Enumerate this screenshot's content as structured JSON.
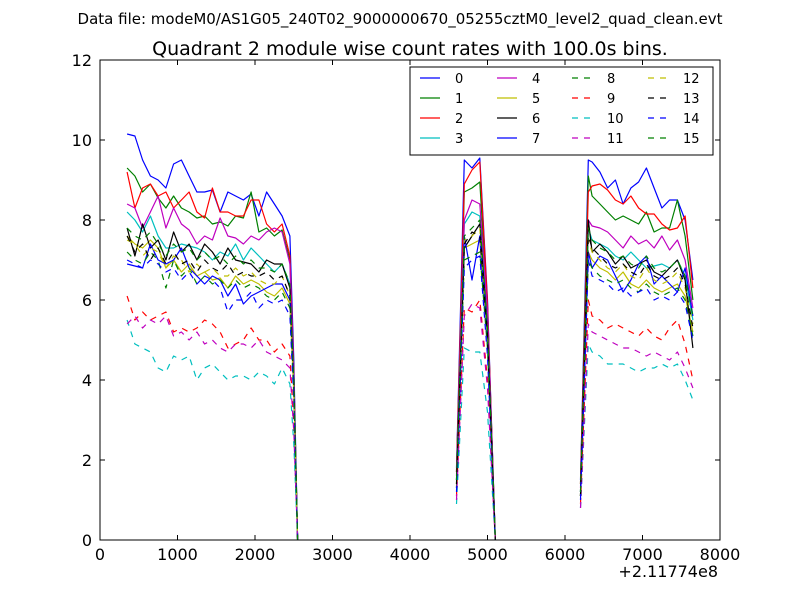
{
  "chart_data": {
    "type": "line",
    "suptitle": "Data file: modeM0/AS1G05_240T02_9000000670_05255cztM0_level2_quad_clean.evt",
    "title": "Quadrant 2 module wise count rates with 100.0s bins.",
    "xlabel": "",
    "ylabel": "",
    "x_offset_label": "+2.11774e8",
    "xlim": [
      0,
      8000
    ],
    "ylim": [
      0,
      12
    ],
    "xticks": [
      0,
      1000,
      2000,
      3000,
      4000,
      5000,
      6000,
      7000,
      8000
    ],
    "yticks": [
      0,
      2,
      4,
      6,
      8,
      10,
      12
    ],
    "x_tick_labels": [
      "0",
      "1000",
      "2000",
      "3000",
      "4000",
      "5000",
      "6000",
      "7000",
      "8000"
    ],
    "y_tick_labels": [
      "0",
      "2",
      "4",
      "6",
      "8",
      "10",
      "12"
    ],
    "grid": false,
    "legend_position": "top-right",
    "legend_columns": 4,
    "x_segments": [
      [
        350,
        450,
        550,
        650,
        750,
        850,
        950,
        1050,
        1150,
        1250,
        1350,
        1450,
        1550,
        1650,
        1750,
        1850,
        1950,
        2050,
        2150,
        2250,
        2350,
        2450,
        2500,
        2550
      ],
      [
        4600,
        4700,
        4800,
        4900,
        5000,
        5100
      ],
      [
        6200,
        6300,
        6350,
        6450,
        6550,
        6650,
        6750,
        6850,
        6950,
        7050,
        7150,
        7250,
        7350,
        7450,
        7550,
        7650
      ]
    ],
    "series": [
      {
        "name": "0",
        "color": "#0000ff",
        "dash": "solid",
        "values": [
          [
            10.15,
            10.1,
            9.5,
            9.1,
            9.0,
            8.8,
            9.4,
            9.5,
            9.1,
            8.7,
            8.7,
            8.75,
            8.2,
            8.7,
            8.6,
            8.5,
            8.65,
            8.1,
            8.7,
            8.4,
            8.1,
            7.6,
            4.5,
            0
          ],
          [
            1.8,
            9.5,
            9.3,
            9.55,
            6.0,
            0
          ],
          [
            1.5,
            9.5,
            9.45,
            9.2,
            8.8,
            9.0,
            8.4,
            8.8,
            8.95,
            9.3,
            8.8,
            8.3,
            8.5,
            8.5,
            8.0,
            6.5
          ]
        ]
      },
      {
        "name": "1",
        "color": "#008000",
        "dash": "solid",
        "values": [
          [
            9.3,
            9.1,
            8.7,
            8.9,
            8.55,
            8.3,
            8.6,
            8.3,
            8.2,
            8.05,
            8.1,
            7.9,
            7.95,
            7.85,
            8.1,
            8.05,
            8.7,
            7.7,
            7.8,
            7.6,
            7.75,
            7.0,
            4.2,
            0
          ],
          [
            1.7,
            8.7,
            8.8,
            8.95,
            5.8,
            0
          ],
          [
            1.4,
            9.1,
            8.6,
            8.4,
            8.2,
            8.0,
            8.1,
            8.0,
            7.9,
            8.2,
            7.7,
            7.8,
            7.8,
            8.5,
            7.6,
            6.0
          ]
        ]
      },
      {
        "name": "2",
        "color": "#ff0000",
        "dash": "solid",
        "values": [
          [
            9.2,
            8.3,
            8.8,
            8.9,
            8.6,
            8.7,
            8.3,
            8.5,
            8.7,
            8.2,
            8.05,
            8.8,
            8.2,
            8.2,
            8.1,
            8.1,
            8.5,
            8.5,
            7.9,
            7.7,
            7.9,
            7.1,
            4.2,
            0
          ],
          [
            1.7,
            8.9,
            9.25,
            9.45,
            5.9,
            0
          ],
          [
            1.4,
            8.7,
            8.85,
            8.9,
            8.75,
            8.5,
            8.4,
            8.6,
            8.3,
            8.15,
            8.15,
            7.9,
            7.75,
            7.8,
            8.1,
            6.3
          ]
        ]
      },
      {
        "name": "3",
        "color": "#00bfbf",
        "dash": "solid",
        "values": [
          [
            8.2,
            8.0,
            7.7,
            8.1,
            7.6,
            7.3,
            7.3,
            7.4,
            7.35,
            7.3,
            7.2,
            7.0,
            7.2,
            7.1,
            7.4,
            7.0,
            7.3,
            7.1,
            6.9,
            6.7,
            6.9,
            6.4,
            4.0,
            0
          ],
          [
            1.5,
            7.9,
            8.2,
            8.1,
            5.5,
            0
          ],
          [
            1.2,
            7.8,
            7.5,
            7.4,
            7.3,
            7.1,
            7.0,
            7.2,
            7.0,
            6.8,
            6.85,
            6.9,
            6.8,
            7.0,
            6.6,
            5.5
          ]
        ]
      },
      {
        "name": "4",
        "color": "#bf00bf",
        "dash": "solid",
        "values": [
          [
            8.4,
            8.3,
            7.8,
            8.2,
            8.6,
            7.8,
            8.3,
            7.9,
            7.75,
            7.4,
            7.6,
            7.5,
            8.05,
            7.6,
            7.55,
            7.4,
            7.6,
            7.5,
            7.7,
            7.8,
            7.7,
            6.9,
            4.1,
            0
          ],
          [
            1.6,
            8.0,
            8.5,
            8.4,
            5.7,
            0
          ],
          [
            1.3,
            8.0,
            7.85,
            7.8,
            7.7,
            7.5,
            7.3,
            7.6,
            7.4,
            7.5,
            7.3,
            7.6,
            7.25,
            7.5,
            7.0,
            5.8
          ]
        ]
      },
      {
        "name": "5",
        "color": "#bfbf00",
        "dash": "solid",
        "values": [
          [
            7.6,
            7.4,
            7.3,
            7.5,
            7.3,
            6.8,
            7.0,
            6.7,
            6.9,
            6.6,
            6.7,
            6.5,
            6.55,
            6.3,
            6.6,
            6.4,
            6.5,
            6.4,
            6.2,
            6.1,
            6.3,
            5.9,
            3.7,
            0
          ],
          [
            1.4,
            7.3,
            7.4,
            7.5,
            5.0,
            0
          ],
          [
            1.1,
            7.2,
            7.0,
            6.8,
            6.7,
            6.5,
            6.7,
            6.4,
            6.3,
            6.5,
            6.3,
            6.2,
            6.3,
            6.4,
            6.1,
            5.2
          ]
        ]
      },
      {
        "name": "6",
        "color": "#000000",
        "dash": "solid",
        "values": [
          [
            7.8,
            7.1,
            7.9,
            7.3,
            7.5,
            7.0,
            7.7,
            7.2,
            7.4,
            7.0,
            7.4,
            7.2,
            6.9,
            7.3,
            7.0,
            6.95,
            6.9,
            6.7,
            7.0,
            6.9,
            6.9,
            6.3,
            3.9,
            0
          ],
          [
            1.5,
            7.3,
            7.6,
            7.9,
            5.2,
            0
          ],
          [
            1.2,
            8.0,
            7.2,
            7.4,
            7.2,
            6.9,
            7.1,
            6.8,
            6.9,
            7.0,
            6.7,
            6.6,
            6.8,
            7.0,
            6.5,
            4.8
          ]
        ]
      },
      {
        "name": "7",
        "color": "#0000ff",
        "dash": "solid",
        "values": [
          [
            6.9,
            6.85,
            6.8,
            7.4,
            7.0,
            6.9,
            7.0,
            7.3,
            6.8,
            6.6,
            6.4,
            6.6,
            6.5,
            6.1,
            6.4,
            5.9,
            6.1,
            6.2,
            6.3,
            6.4,
            6.4,
            6.0,
            3.8,
            0
          ],
          [
            1.3,
            7.6,
            6.5,
            7.6,
            5.0,
            0
          ],
          [
            1.1,
            7.2,
            6.8,
            7.1,
            7.0,
            6.6,
            6.2,
            6.5,
            6.9,
            7.1,
            6.4,
            6.6,
            6.4,
            6.2,
            6.8,
            5.6
          ]
        ]
      },
      {
        "name": "8",
        "color": "#008000",
        "dash": "dashed",
        "values": [
          [
            7.2,
            7.0,
            6.9,
            7.2,
            7.0,
            6.3,
            7.0,
            6.6,
            6.8,
            6.4,
            6.6,
            6.4,
            6.5,
            6.3,
            6.5,
            6.3,
            6.4,
            6.3,
            6.1,
            6.0,
            6.2,
            5.8,
            3.6,
            0
          ],
          [
            1.3,
            7.0,
            7.1,
            7.2,
            4.8,
            0
          ],
          [
            1.1,
            7.0,
            6.8,
            6.6,
            6.5,
            6.4,
            6.5,
            6.3,
            6.2,
            6.4,
            6.2,
            6.1,
            6.2,
            6.3,
            6.0,
            5.1
          ]
        ]
      },
      {
        "name": "9",
        "color": "#ff0000",
        "dash": "dashed",
        "values": [
          [
            6.1,
            5.5,
            5.7,
            5.5,
            5.6,
            5.7,
            5.2,
            5.3,
            5.2,
            5.3,
            5.5,
            5.4,
            5.2,
            4.8,
            4.9,
            5.0,
            5.3,
            5.0,
            5.0,
            4.7,
            4.9,
            4.6,
            2.9,
            0
          ],
          [
            1.1,
            5.8,
            5.7,
            6.0,
            4.0,
            0
          ],
          [
            0.9,
            6.0,
            5.6,
            5.5,
            5.3,
            5.4,
            5.3,
            5.2,
            5.1,
            5.3,
            5.1,
            5.0,
            5.3,
            5.5,
            4.9,
            4.0
          ]
        ]
      },
      {
        "name": "10",
        "color": "#00bfbf",
        "dash": "dashed",
        "values": [
          [
            5.5,
            4.9,
            4.8,
            4.7,
            4.3,
            4.2,
            4.6,
            4.5,
            4.6,
            4.0,
            4.3,
            4.4,
            4.2,
            4.0,
            4.1,
            4.1,
            4.0,
            4.2,
            4.1,
            3.9,
            4.3,
            3.9,
            2.4,
            0
          ],
          [
            0.9,
            4.8,
            4.7,
            4.7,
            3.2,
            0
          ],
          [
            0.8,
            4.9,
            4.7,
            4.6,
            4.4,
            4.4,
            4.4,
            4.3,
            4.2,
            4.3,
            4.3,
            4.4,
            4.3,
            4.4,
            4.0,
            3.5
          ]
        ]
      },
      {
        "name": "11",
        "color": "#bf00bf",
        "dash": "dashed",
        "values": [
          [
            5.4,
            5.6,
            5.3,
            5.5,
            5.4,
            5.6,
            5.1,
            5.2,
            5.0,
            5.2,
            4.9,
            5.0,
            4.8,
            4.7,
            4.9,
            4.9,
            4.8,
            5.0,
            4.7,
            4.6,
            4.5,
            4.3,
            2.7,
            0
          ],
          [
            1.0,
            5.6,
            5.9,
            5.8,
            3.8,
            0
          ],
          [
            0.8,
            5.4,
            5.2,
            5.1,
            5.0,
            4.9,
            4.8,
            4.8,
            4.7,
            4.6,
            4.7,
            4.6,
            4.5,
            4.7,
            4.3,
            3.8
          ]
        ]
      },
      {
        "name": "12",
        "color": "#bfbf00",
        "dash": "dashed",
        "values": [
          [
            7.5,
            7.4,
            7.1,
            7.3,
            7.2,
            6.8,
            7.1,
            7.0,
            6.7,
            6.9,
            6.7,
            6.8,
            6.6,
            6.6,
            6.8,
            6.6,
            6.7,
            6.5,
            6.4,
            6.4,
            6.6,
            6.1,
            3.8,
            0
          ],
          [
            1.4,
            7.5,
            7.6,
            7.8,
            5.1,
            0
          ],
          [
            1.1,
            7.5,
            7.2,
            7.0,
            6.8,
            6.7,
            6.9,
            6.6,
            6.5,
            6.8,
            6.5,
            6.4,
            6.5,
            6.7,
            6.3,
            5.4
          ]
        ]
      },
      {
        "name": "13",
        "color": "#000000",
        "dash": "dashed",
        "values": [
          [
            7.6,
            7.2,
            7.4,
            7.0,
            7.3,
            6.9,
            7.2,
            6.9,
            7.0,
            6.7,
            7.0,
            6.8,
            6.7,
            6.9,
            6.6,
            6.7,
            6.6,
            6.6,
            6.7,
            6.5,
            6.6,
            6.1,
            3.8,
            0
          ],
          [
            1.4,
            7.4,
            7.7,
            7.6,
            5.1,
            0
          ],
          [
            1.1,
            7.6,
            7.3,
            7.1,
            6.9,
            6.8,
            6.9,
            6.7,
            6.6,
            6.9,
            6.6,
            6.5,
            6.6,
            6.8,
            6.4,
            5.3
          ]
        ]
      },
      {
        "name": "14",
        "color": "#0000ff",
        "dash": "dashed",
        "values": [
          [
            7.0,
            6.9,
            6.8,
            7.0,
            6.9,
            6.7,
            6.8,
            6.5,
            6.7,
            6.4,
            6.6,
            6.5,
            6.3,
            5.7,
            6.0,
            6.0,
            6.2,
            5.8,
            6.0,
            5.9,
            6.0,
            5.6,
            3.5,
            0
          ],
          [
            1.2,
            6.8,
            7.0,
            7.1,
            4.6,
            0
          ],
          [
            1.0,
            7.0,
            6.6,
            6.5,
            6.4,
            6.2,
            6.3,
            6.1,
            6.2,
            6.3,
            6.0,
            6.1,
            6.0,
            6.2,
            5.9,
            5.0
          ]
        ]
      },
      {
        "name": "15",
        "color": "#008000",
        "dash": "dashed",
        "values": [
          [
            7.8,
            7.6,
            7.5,
            7.7,
            7.4,
            7.1,
            7.4,
            7.2,
            7.3,
            7.0,
            7.2,
            7.0,
            7.1,
            6.9,
            7.1,
            6.9,
            7.0,
            6.8,
            6.8,
            6.7,
            6.9,
            6.4,
            4.0,
            0
          ],
          [
            1.5,
            7.6,
            7.8,
            8.0,
            5.3,
            0
          ],
          [
            1.2,
            7.8,
            7.5,
            7.3,
            7.2,
            7.0,
            7.1,
            6.9,
            6.8,
            7.1,
            6.8,
            6.7,
            6.8,
            7.0,
            6.6,
            5.6
          ]
        ]
      }
    ]
  }
}
